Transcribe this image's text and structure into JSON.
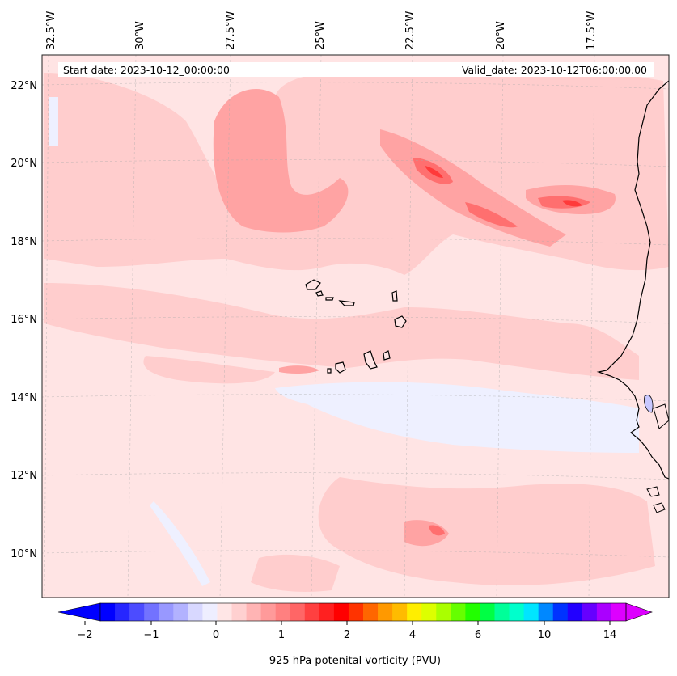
{
  "map": {
    "header": {
      "start_date": "Start date: 2023-10-12_00:00:00",
      "valid_date": "Valid_date: 2023-10-12T06:00:00.00"
    },
    "lon_labels": [
      "32.5°W",
      "30°W",
      "27.5°W",
      "25°W",
      "22.5°W",
      "20°W",
      "17.5°W"
    ],
    "lat_labels": [
      "22°N",
      "20°N",
      "18°N",
      "16°N",
      "14°N",
      "12°N",
      "10°N"
    ],
    "extent": {
      "lon_min": -33.0,
      "lon_max": -15.5,
      "lat_min": 8.9,
      "lat_max": 22.8
    },
    "islands": [
      "Santo Antão",
      "São Vicente",
      "São Nicolau",
      "Sal",
      "Boa Vista",
      "Maio",
      "Santiago",
      "Fogo",
      "Brava"
    ],
    "colors": {
      "background_field": "#ffe4e4",
      "light_pink": "#ffcdcd",
      "medium_pink": "#ffa3a3",
      "strong_red": "#ff6f6f",
      "core_red": "#ff3a3a",
      "weak_negative": "#eef0ff",
      "coastline": "#000000"
    }
  },
  "colorbar": {
    "label": "925 hPa potenital vorticity (PVU)",
    "tick_labels": [
      "−2",
      "−1",
      "0",
      "1",
      "2",
      "4",
      "6",
      "10",
      "14"
    ],
    "colors": [
      "#0000ff",
      "#2626ff",
      "#4c4cff",
      "#7272ff",
      "#9898ff",
      "#b2b2ff",
      "#d8d8ff",
      "#eeeeff",
      "#ffe6e6",
      "#ffd0d0",
      "#ffb4b4",
      "#ff9a9a",
      "#ff8080",
      "#ff6666",
      "#ff4040",
      "#ff2020",
      "#ff0000",
      "#ff3300",
      "#ff6600",
      "#ff9900",
      "#ffbb00",
      "#ffee00",
      "#ddff00",
      "#aaff00",
      "#66ff00",
      "#22ff00",
      "#00ff44",
      "#00ff99",
      "#00ffcc",
      "#00e5ff",
      "#0088ff",
      "#0033ff",
      "#2200ff",
      "#6600ff",
      "#aa00ff",
      "#dd00ff"
    ]
  }
}
